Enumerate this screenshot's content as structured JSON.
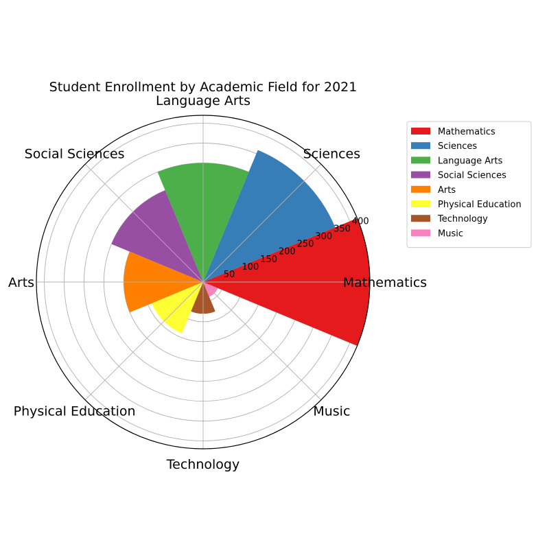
{
  "chart_data": {
    "type": "polar-bar",
    "title": "Student Enrollment by Academic Field for 2021",
    "categories": [
      "Mathematics",
      "Sciences",
      "Language Arts",
      "Social Sciences",
      "Arts",
      "Physical Education",
      "Technology",
      "Music"
    ],
    "values": [
      420,
      360,
      300,
      250,
      200,
      140,
      80,
      40
    ],
    "colors": [
      "#e41a1c",
      "#377eb8",
      "#4daf4a",
      "#984ea3",
      "#ff7f00",
      "#ffff33",
      "#a65628",
      "#f781bf"
    ],
    "r_ticks": [
      50,
      100,
      150,
      200,
      250,
      300,
      350,
      400
    ],
    "r_tick_labels": [
      "50",
      "100",
      "150",
      "200",
      "250",
      "300",
      "350",
      "400"
    ],
    "rlim": [
      0,
      420
    ],
    "grid": true,
    "legend_position": "upper-right outside"
  }
}
